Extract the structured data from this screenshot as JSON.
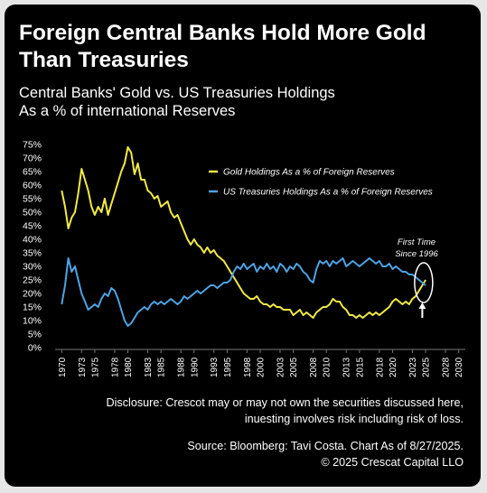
{
  "title_line1": "Foreign Central Banks Hold More Gold",
  "title_line2": "Than Treasuries",
  "subtitle_line1": "Central Banks' Gold vs. US Treasuries Holdings",
  "subtitle_line2": "As a % of international Reserves",
  "disclosure_line1": "Disclosure: Crescot may or may not own the securities discussed here,",
  "disclosure_line2": "inuesting involves risk including risk of loss.",
  "source_line1": "Source: Bloomberg: Tavi Costa. Chart As of 8/27/2025.",
  "source_line2": "© 2025 Crescat Capital LLO",
  "chart_data": {
    "type": "line",
    "xlim": [
      1969,
      2031
    ],
    "ylim": [
      0,
      75
    ],
    "x_ticks": [
      1970,
      1973,
      1975,
      1978,
      1980,
      1983,
      1985,
      1988,
      1990,
      1993,
      1995,
      1998,
      2000,
      2003,
      2005,
      2008,
      2010,
      2013,
      2015,
      2018,
      2020,
      2023,
      2025,
      2028,
      2030
    ],
    "y_ticks": [
      0,
      5,
      10,
      15,
      20,
      25,
      30,
      35,
      40,
      45,
      50,
      55,
      60,
      65,
      70,
      75
    ],
    "y_tick_labels": [
      "0%",
      "5%",
      "10%",
      "15%",
      "20%",
      "25%",
      "30%",
      "35%",
      "40%",
      "45%",
      "50%",
      "55%",
      "60%",
      "65%",
      "70%",
      "75%"
    ],
    "grid": false,
    "legend_position": "top-right",
    "series": [
      {
        "name": "Gold Holdings As a % of Foreign Reserves",
        "color": "#f2ea45",
        "points": [
          [
            1970,
            58
          ],
          [
            1970.5,
            52
          ],
          [
            1971,
            44
          ],
          [
            1971.5,
            48
          ],
          [
            1972,
            50
          ],
          [
            1972.5,
            57
          ],
          [
            1973,
            66
          ],
          [
            1973.5,
            62
          ],
          [
            1974,
            58
          ],
          [
            1974.5,
            52
          ],
          [
            1975,
            49
          ],
          [
            1975.5,
            52
          ],
          [
            1976,
            50
          ],
          [
            1976.5,
            55
          ],
          [
            1977,
            49
          ],
          [
            1977.5,
            53
          ],
          [
            1978,
            57
          ],
          [
            1978.5,
            61
          ],
          [
            1979,
            65
          ],
          [
            1979.5,
            68
          ],
          [
            1980,
            74
          ],
          [
            1980.5,
            72
          ],
          [
            1981,
            64
          ],
          [
            1981.5,
            68
          ],
          [
            1982,
            62
          ],
          [
            1982.5,
            62
          ],
          [
            1983,
            58
          ],
          [
            1983.5,
            57
          ],
          [
            1984,
            55
          ],
          [
            1984.5,
            56
          ],
          [
            1985,
            52
          ],
          [
            1985.5,
            53
          ],
          [
            1986,
            54
          ],
          [
            1986.5,
            50
          ],
          [
            1987,
            48
          ],
          [
            1987.5,
            49
          ],
          [
            1988,
            46
          ],
          [
            1988.5,
            43
          ],
          [
            1989,
            40
          ],
          [
            1989.5,
            38
          ],
          [
            1990,
            40
          ],
          [
            1990.5,
            38
          ],
          [
            1991,
            37
          ],
          [
            1991.5,
            35
          ],
          [
            1992,
            37
          ],
          [
            1992.5,
            35
          ],
          [
            1993,
            36
          ],
          [
            1993.5,
            34
          ],
          [
            1994,
            33
          ],
          [
            1994.5,
            32
          ],
          [
            1995,
            30
          ],
          [
            1995.5,
            28
          ],
          [
            1996,
            26
          ],
          [
            1996.5,
            24
          ],
          [
            1997,
            22
          ],
          [
            1997.5,
            20
          ],
          [
            1998,
            19
          ],
          [
            1998.5,
            18
          ],
          [
            1999,
            18
          ],
          [
            1999.5,
            19
          ],
          [
            2000,
            17
          ],
          [
            2000.5,
            16
          ],
          [
            2001,
            16
          ],
          [
            2001.5,
            15
          ],
          [
            2002,
            16
          ],
          [
            2002.5,
            15
          ],
          [
            2003,
            15
          ],
          [
            2003.5,
            14
          ],
          [
            2004,
            14
          ],
          [
            2004.5,
            14
          ],
          [
            2005,
            12
          ],
          [
            2005.5,
            13
          ],
          [
            2006,
            14
          ],
          [
            2006.5,
            12
          ],
          [
            2007,
            13
          ],
          [
            2007.5,
            12
          ],
          [
            2008,
            11
          ],
          [
            2008.5,
            13
          ],
          [
            2009,
            14
          ],
          [
            2009.5,
            15
          ],
          [
            2010,
            15
          ],
          [
            2010.5,
            16
          ],
          [
            2011,
            18
          ],
          [
            2011.5,
            17
          ],
          [
            2012,
            17
          ],
          [
            2012.5,
            15
          ],
          [
            2013,
            14
          ],
          [
            2013.5,
            12
          ],
          [
            2014,
            12
          ],
          [
            2014.5,
            11
          ],
          [
            2015,
            12
          ],
          [
            2015.5,
            11
          ],
          [
            2016,
            12
          ],
          [
            2016.5,
            13
          ],
          [
            2017,
            12
          ],
          [
            2017.5,
            13
          ],
          [
            2018,
            12
          ],
          [
            2018.5,
            13
          ],
          [
            2019,
            14
          ],
          [
            2019.5,
            15
          ],
          [
            2020,
            17
          ],
          [
            2020.5,
            18
          ],
          [
            2021,
            17
          ],
          [
            2021.5,
            16
          ],
          [
            2022,
            17
          ],
          [
            2022.5,
            16
          ],
          [
            2023,
            18
          ],
          [
            2023.5,
            19
          ],
          [
            2024,
            21
          ],
          [
            2024.5,
            23
          ],
          [
            2025,
            25
          ]
        ]
      },
      {
        "name": "US Treasuries Holdings As a % of Foreign Reserves",
        "color": "#4ea3e3",
        "points": [
          [
            1970,
            16
          ],
          [
            1970.5,
            23
          ],
          [
            1971,
            33
          ],
          [
            1971.5,
            28
          ],
          [
            1972,
            30
          ],
          [
            1972.5,
            25
          ],
          [
            1973,
            20
          ],
          [
            1973.5,
            17
          ],
          [
            1974,
            14
          ],
          [
            1974.5,
            15
          ],
          [
            1975,
            16
          ],
          [
            1975.5,
            15
          ],
          [
            1976,
            18
          ],
          [
            1976.5,
            20
          ],
          [
            1977,
            19
          ],
          [
            1977.5,
            22
          ],
          [
            1978,
            21
          ],
          [
            1978.5,
            18
          ],
          [
            1979,
            14
          ],
          [
            1979.5,
            10
          ],
          [
            1980,
            8
          ],
          [
            1980.5,
            9
          ],
          [
            1981,
            11
          ],
          [
            1981.5,
            13
          ],
          [
            1982,
            14
          ],
          [
            1982.5,
            15
          ],
          [
            1983,
            14
          ],
          [
            1983.5,
            16
          ],
          [
            1984,
            17
          ],
          [
            1984.5,
            16
          ],
          [
            1985,
            17
          ],
          [
            1985.5,
            16
          ],
          [
            1986,
            17
          ],
          [
            1986.5,
            18
          ],
          [
            1987,
            17
          ],
          [
            1987.5,
            16
          ],
          [
            1988,
            17
          ],
          [
            1988.5,
            19
          ],
          [
            1989,
            18
          ],
          [
            1989.5,
            19
          ],
          [
            1990,
            20
          ],
          [
            1990.5,
            21
          ],
          [
            1991,
            20
          ],
          [
            1991.5,
            21
          ],
          [
            1992,
            22
          ],
          [
            1992.5,
            23
          ],
          [
            1993,
            23
          ],
          [
            1993.5,
            22
          ],
          [
            1994,
            23
          ],
          [
            1994.5,
            24
          ],
          [
            1995,
            24
          ],
          [
            1995.5,
            25
          ],
          [
            1996,
            28
          ],
          [
            1996.5,
            30
          ],
          [
            1997,
            29
          ],
          [
            1997.5,
            31
          ],
          [
            1998,
            29
          ],
          [
            1998.5,
            30
          ],
          [
            1999,
            31
          ],
          [
            1999.5,
            28
          ],
          [
            2000,
            30
          ],
          [
            2000.5,
            29
          ],
          [
            2001,
            31
          ],
          [
            2001.5,
            29
          ],
          [
            2002,
            30
          ],
          [
            2002.5,
            28
          ],
          [
            2003,
            31
          ],
          [
            2003.5,
            30
          ],
          [
            2004,
            28
          ],
          [
            2004.5,
            30
          ],
          [
            2005,
            29
          ],
          [
            2005.5,
            31
          ],
          [
            2006,
            30
          ],
          [
            2006.5,
            28
          ],
          [
            2007,
            27
          ],
          [
            2007.5,
            25
          ],
          [
            2008,
            24
          ],
          [
            2008.5,
            29
          ],
          [
            2009,
            32
          ],
          [
            2009.5,
            31
          ],
          [
            2010,
            32
          ],
          [
            2010.5,
            30
          ],
          [
            2011,
            32
          ],
          [
            2011.5,
            31
          ],
          [
            2012,
            32
          ],
          [
            2012.5,
            33
          ],
          [
            2013,
            30
          ],
          [
            2013.5,
            31
          ],
          [
            2014,
            32
          ],
          [
            2014.5,
            31
          ],
          [
            2015,
            30
          ],
          [
            2015.5,
            31
          ],
          [
            2016,
            32
          ],
          [
            2016.5,
            33
          ],
          [
            2017,
            32
          ],
          [
            2017.5,
            31
          ],
          [
            2018,
            32
          ],
          [
            2018.5,
            30
          ],
          [
            2019,
            30
          ],
          [
            2019.5,
            31
          ],
          [
            2020,
            29
          ],
          [
            2020.5,
            30
          ],
          [
            2021,
            29
          ],
          [
            2021.5,
            28
          ],
          [
            2022,
            28
          ],
          [
            2022.5,
            27
          ],
          [
            2023,
            27
          ],
          [
            2023.5,
            26
          ],
          [
            2024,
            25
          ],
          [
            2024.5,
            24
          ],
          [
            2025,
            23
          ]
        ]
      }
    ],
    "annotation_text_line1": "First Time",
    "annotation_text_line2": "Since 1996",
    "annotation_circle_center": [
      2024.7,
      24
    ],
    "annotation_arrow_from": [
      2024.5,
      11
    ],
    "annotation_arrow_to": [
      2024.5,
      16
    ]
  }
}
